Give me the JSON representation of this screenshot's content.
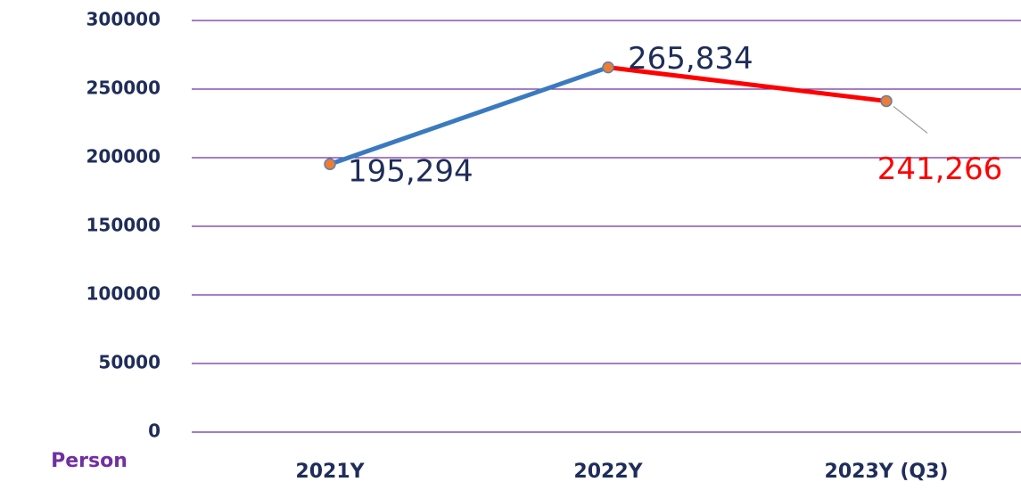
{
  "chart_data": {
    "type": "line",
    "y_axis_label": "Person",
    "categories": [
      "2021Y",
      "2022Y",
      "2023Y (Q3)"
    ],
    "series": [
      {
        "values": [
          195294,
          265834,
          241266
        ],
        "value_labels": [
          "195,294",
          "265,834",
          "241,266"
        ],
        "segment_colors": [
          "#3a7abf",
          "#ff0000"
        ],
        "marker_color": "#ed7d31",
        "label_colors": [
          "#1f2d5a",
          "#1f2d5a",
          "#ff0000"
        ]
      }
    ],
    "ylim": [
      0,
      300000
    ],
    "yticks": [
      0,
      50000,
      100000,
      150000,
      200000,
      250000,
      300000
    ],
    "grid": true,
    "grid_color": "#7030a0"
  }
}
